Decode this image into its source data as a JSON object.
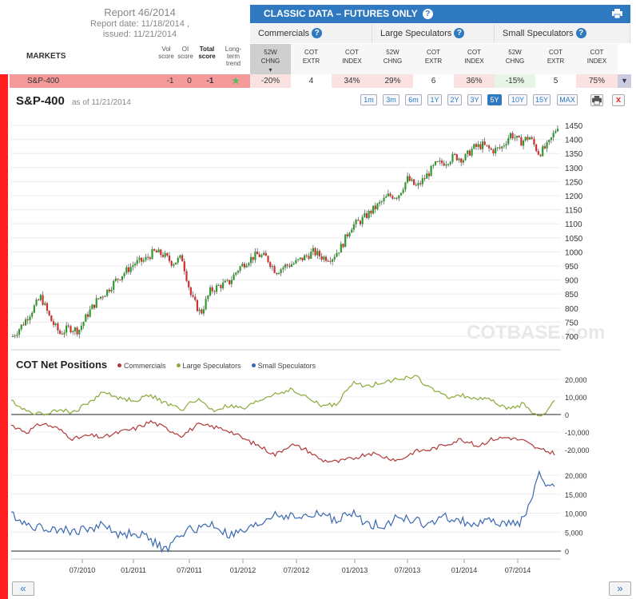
{
  "report": {
    "title": "Report 46/2014",
    "date": "Report date: 11/18/2014 ,",
    "issued": "issued: 11/21/2014"
  },
  "classic_bar": {
    "title": "CLASSIC DATA – FUTURES ONLY",
    "help": "?"
  },
  "groups": [
    {
      "label": "Commercials"
    },
    {
      "label": "Large Speculators"
    },
    {
      "label": "Small Speculators"
    }
  ],
  "columns": {
    "markets": "MARKETS",
    "vol": [
      "Vol",
      "score"
    ],
    "oi": [
      "OI",
      "score"
    ],
    "total": [
      "Total",
      "score"
    ],
    "trend": [
      "Long-term",
      "trend"
    ],
    "chng": [
      "52W",
      "CHNG"
    ],
    "extr": [
      "COT",
      "EXTR"
    ],
    "index": [
      "COT",
      "INDEX"
    ]
  },
  "row": {
    "name": "S&P-400",
    "vol": "-1",
    "oi": "0",
    "total": "-1",
    "values": [
      "-20%",
      "4",
      "34%",
      "29%",
      "6",
      "36%",
      "-15%",
      "5",
      "75%"
    ]
  },
  "chart": {
    "title": "S&P-400",
    "as_of": "as of 11/21/2014",
    "ranges": [
      "1m",
      "3m",
      "6m",
      "1Y",
      "2Y",
      "3Y",
      "5Y",
      "10Y",
      "15Y",
      "MAX"
    ],
    "selected_range": "5Y",
    "watermark": "COTBASE.com"
  },
  "cot": {
    "title": "COT Net Positions",
    "legend": [
      {
        "name": "Commercials",
        "color": "#b03a3a"
      },
      {
        "name": "Large Speculators",
        "color": "#8aaa3a"
      },
      {
        "name": "Small Speculators",
        "color": "#3a68b0"
      }
    ]
  },
  "colors": {
    "accent": "#2f79c0",
    "up": "#2e9a2e",
    "down": "#d03030",
    "market_row": "#f59a9a"
  },
  "chart_data": [
    {
      "type": "candlestick",
      "title": "S&P-400",
      "ylim": [
        680,
        1470
      ],
      "yticks": [
        700,
        750,
        800,
        850,
        900,
        950,
        1000,
        1050,
        1100,
        1150,
        1200,
        1250,
        1300,
        1350,
        1400,
        1450
      ],
      "x": [
        "2010-01",
        "2010-02",
        "2010-03",
        "2010-04",
        "2010-05",
        "2010-06",
        "2010-07",
        "2010-08",
        "2010-09",
        "2010-10",
        "2010-11",
        "2010-12",
        "2011-01",
        "2011-02",
        "2011-03",
        "2011-04",
        "2011-05",
        "2011-06",
        "2011-07",
        "2011-08",
        "2011-09",
        "2011-10",
        "2011-11",
        "2011-12",
        "2012-01",
        "2012-02",
        "2012-03",
        "2012-04",
        "2012-05",
        "2012-06",
        "2012-07",
        "2012-08",
        "2012-09",
        "2012-10",
        "2012-11",
        "2012-12",
        "2013-01",
        "2013-02",
        "2013-03",
        "2013-04",
        "2013-05",
        "2013-06",
        "2013-07",
        "2013-08",
        "2013-09",
        "2013-10",
        "2013-11",
        "2013-12",
        "2014-01",
        "2014-02",
        "2014-03",
        "2014-04",
        "2014-05",
        "2014-06",
        "2014-07",
        "2014-08",
        "2014-09",
        "2014-10",
        "2014-11"
      ],
      "close": [
        700,
        740,
        790,
        840,
        760,
        710,
        730,
        720,
        780,
        830,
        860,
        900,
        930,
        960,
        970,
        1000,
        990,
        960,
        980,
        840,
        780,
        860,
        880,
        890,
        940,
        970,
        990,
        980,
        930,
        950,
        960,
        980,
        1000,
        980,
        980,
        1020,
        1090,
        1110,
        1140,
        1170,
        1200,
        1200,
        1260,
        1230,
        1270,
        1310,
        1320,
        1340,
        1330,
        1370,
        1380,
        1360,
        1370,
        1420,
        1390,
        1410,
        1350,
        1380,
        1450
      ]
    },
    {
      "type": "line",
      "title": "COT Net Positions",
      "series_names": [
        "Commercials",
        "Large Speculators",
        "Small Speculators"
      ],
      "yticks_top": [
        -20000,
        -10000,
        0,
        10000,
        20000
      ],
      "yticks_bottom": [
        0,
        5000,
        10000,
        15000,
        20000
      ],
      "xticks": [
        "07/2010",
        "01/2011",
        "07/2011",
        "01/2012",
        "07/2012",
        "01/2013",
        "07/2013",
        "01/2014",
        "07/2014"
      ],
      "large_speculators": [
        8000,
        2000,
        0,
        3000,
        1000,
        7000,
        13000,
        9000,
        8000,
        11000,
        6000,
        3000,
        9000,
        2000,
        5000,
        3000,
        8000,
        12000,
        14000,
        10000,
        5000,
        6000,
        18000,
        16000,
        19000,
        20000,
        22000,
        15000,
        10000,
        11000,
        9000,
        8000,
        3000,
        6000,
        -2000,
        7000
      ],
      "commercials": [
        -6000,
        -10000,
        -5000,
        -8000,
        -14000,
        -12000,
        -13000,
        -10000,
        -8000,
        -4000,
        -8000,
        -12000,
        -6000,
        -7000,
        -9000,
        -14000,
        -18000,
        -23000,
        -17000,
        -20000,
        -26000,
        -27000,
        -25000,
        -22000,
        -24000,
        -26000,
        -21000,
        -20000,
        -17000,
        -14000,
        -18000,
        -14000,
        -13000,
        -15000,
        -20000,
        -22000
      ],
      "small_speculators": [
        10000,
        7000,
        6000,
        6000,
        5000,
        6000,
        7000,
        4000,
        5000,
        3000,
        0,
        5000,
        6000,
        7000,
        4000,
        5000,
        7000,
        10000,
        9000,
        9000,
        10000,
        8000,
        10000,
        7000,
        7000,
        9000,
        8000,
        7000,
        9000,
        8000,
        7000,
        8000,
        7000,
        8000,
        20000,
        16000
      ]
    }
  ]
}
